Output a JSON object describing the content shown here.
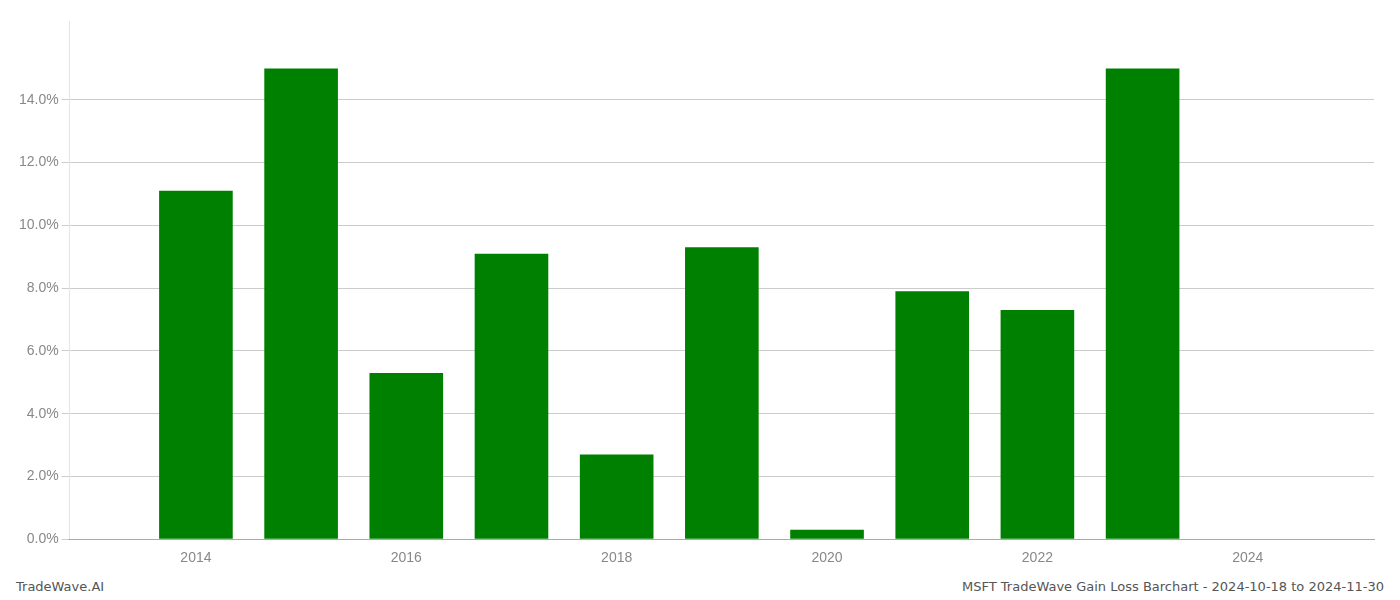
{
  "chart_data": {
    "type": "bar",
    "x": [
      2014,
      2015,
      2016,
      2017,
      2018,
      2019,
      2020,
      2021,
      2022,
      2023
    ],
    "values": [
      0.111,
      0.15,
      0.053,
      0.091,
      0.027,
      0.093,
      0.003,
      0.079,
      0.073,
      0.15
    ],
    "color": "#008000",
    "xlim": [
      2012.8,
      2025.2
    ],
    "xticks": [
      2014,
      2016,
      2018,
      2020,
      2022,
      2024
    ],
    "ylim": [
      0.0,
      0.165
    ],
    "yticks": [
      {
        "value": 0.0,
        "label": "0.0%"
      },
      {
        "value": 0.02,
        "label": "2.0%"
      },
      {
        "value": 0.04,
        "label": "4.0%"
      },
      {
        "value": 0.06,
        "label": "6.0%"
      },
      {
        "value": 0.08,
        "label": "8.0%"
      },
      {
        "value": 0.1,
        "label": "10.0%"
      },
      {
        "value": 0.12,
        "label": "12.0%"
      },
      {
        "value": 0.14,
        "label": "14.0%"
      }
    ],
    "grid": "y",
    "annotations": [
      "TradeWave.AI",
      "MSFT TradeWave Gain Loss Barchart - 2024-10-18 to 2024-11-30"
    ]
  }
}
